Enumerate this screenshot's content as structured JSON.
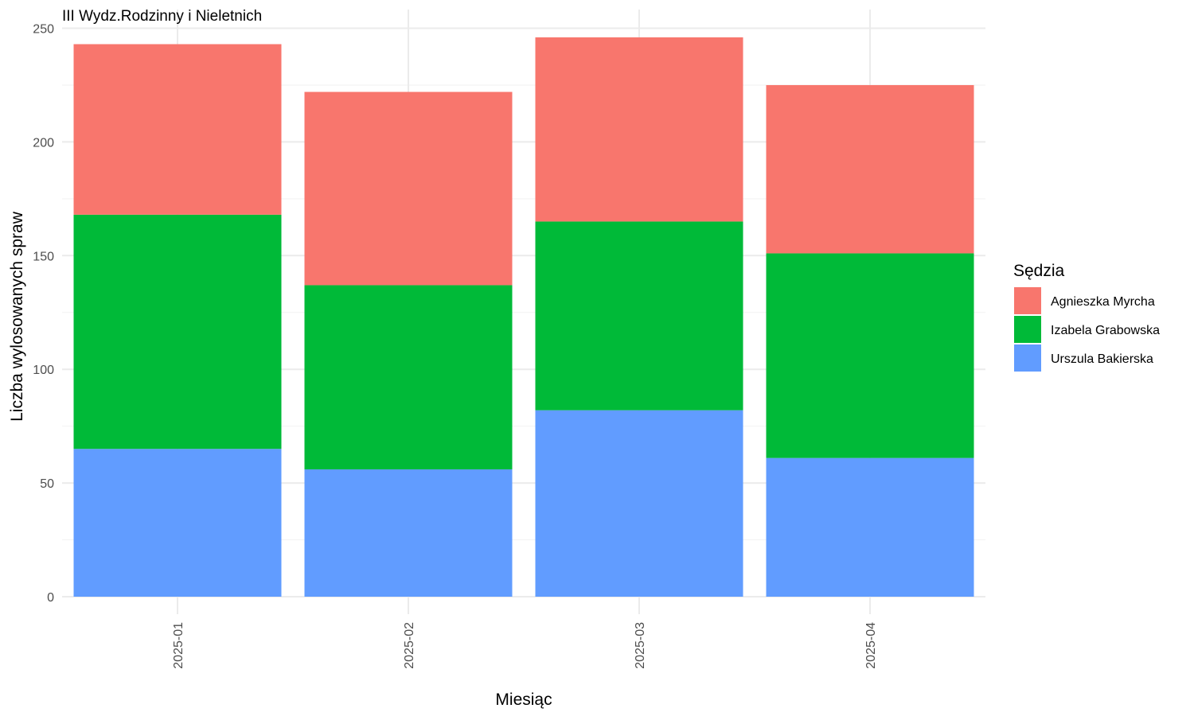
{
  "chart_data": {
    "type": "bar",
    "stacked": true,
    "title": "III Wydz.Rodzinny i Nieletnich",
    "xlabel": "Miesiąc",
    "ylabel": "Liczba wylosowanych spraw",
    "categories": [
      "2025-01",
      "2025-02",
      "2025-03",
      "2025-04"
    ],
    "ylim": [
      0,
      250
    ],
    "yticks": [
      0,
      50,
      100,
      150,
      200,
      250
    ],
    "grid": true,
    "legend": {
      "title": "Sędzia",
      "position": "right"
    },
    "series": [
      {
        "name": "Agnieszka Myrcha",
        "color": "#F8766D",
        "values": [
          75,
          85,
          81,
          74
        ]
      },
      {
        "name": "Izabela Grabowska",
        "color": "#00BA38",
        "values": [
          103,
          81,
          83,
          90
        ]
      },
      {
        "name": "Urszula Bakierska",
        "color": "#619CFF",
        "values": [
          65,
          56,
          82,
          61
        ]
      }
    ]
  }
}
